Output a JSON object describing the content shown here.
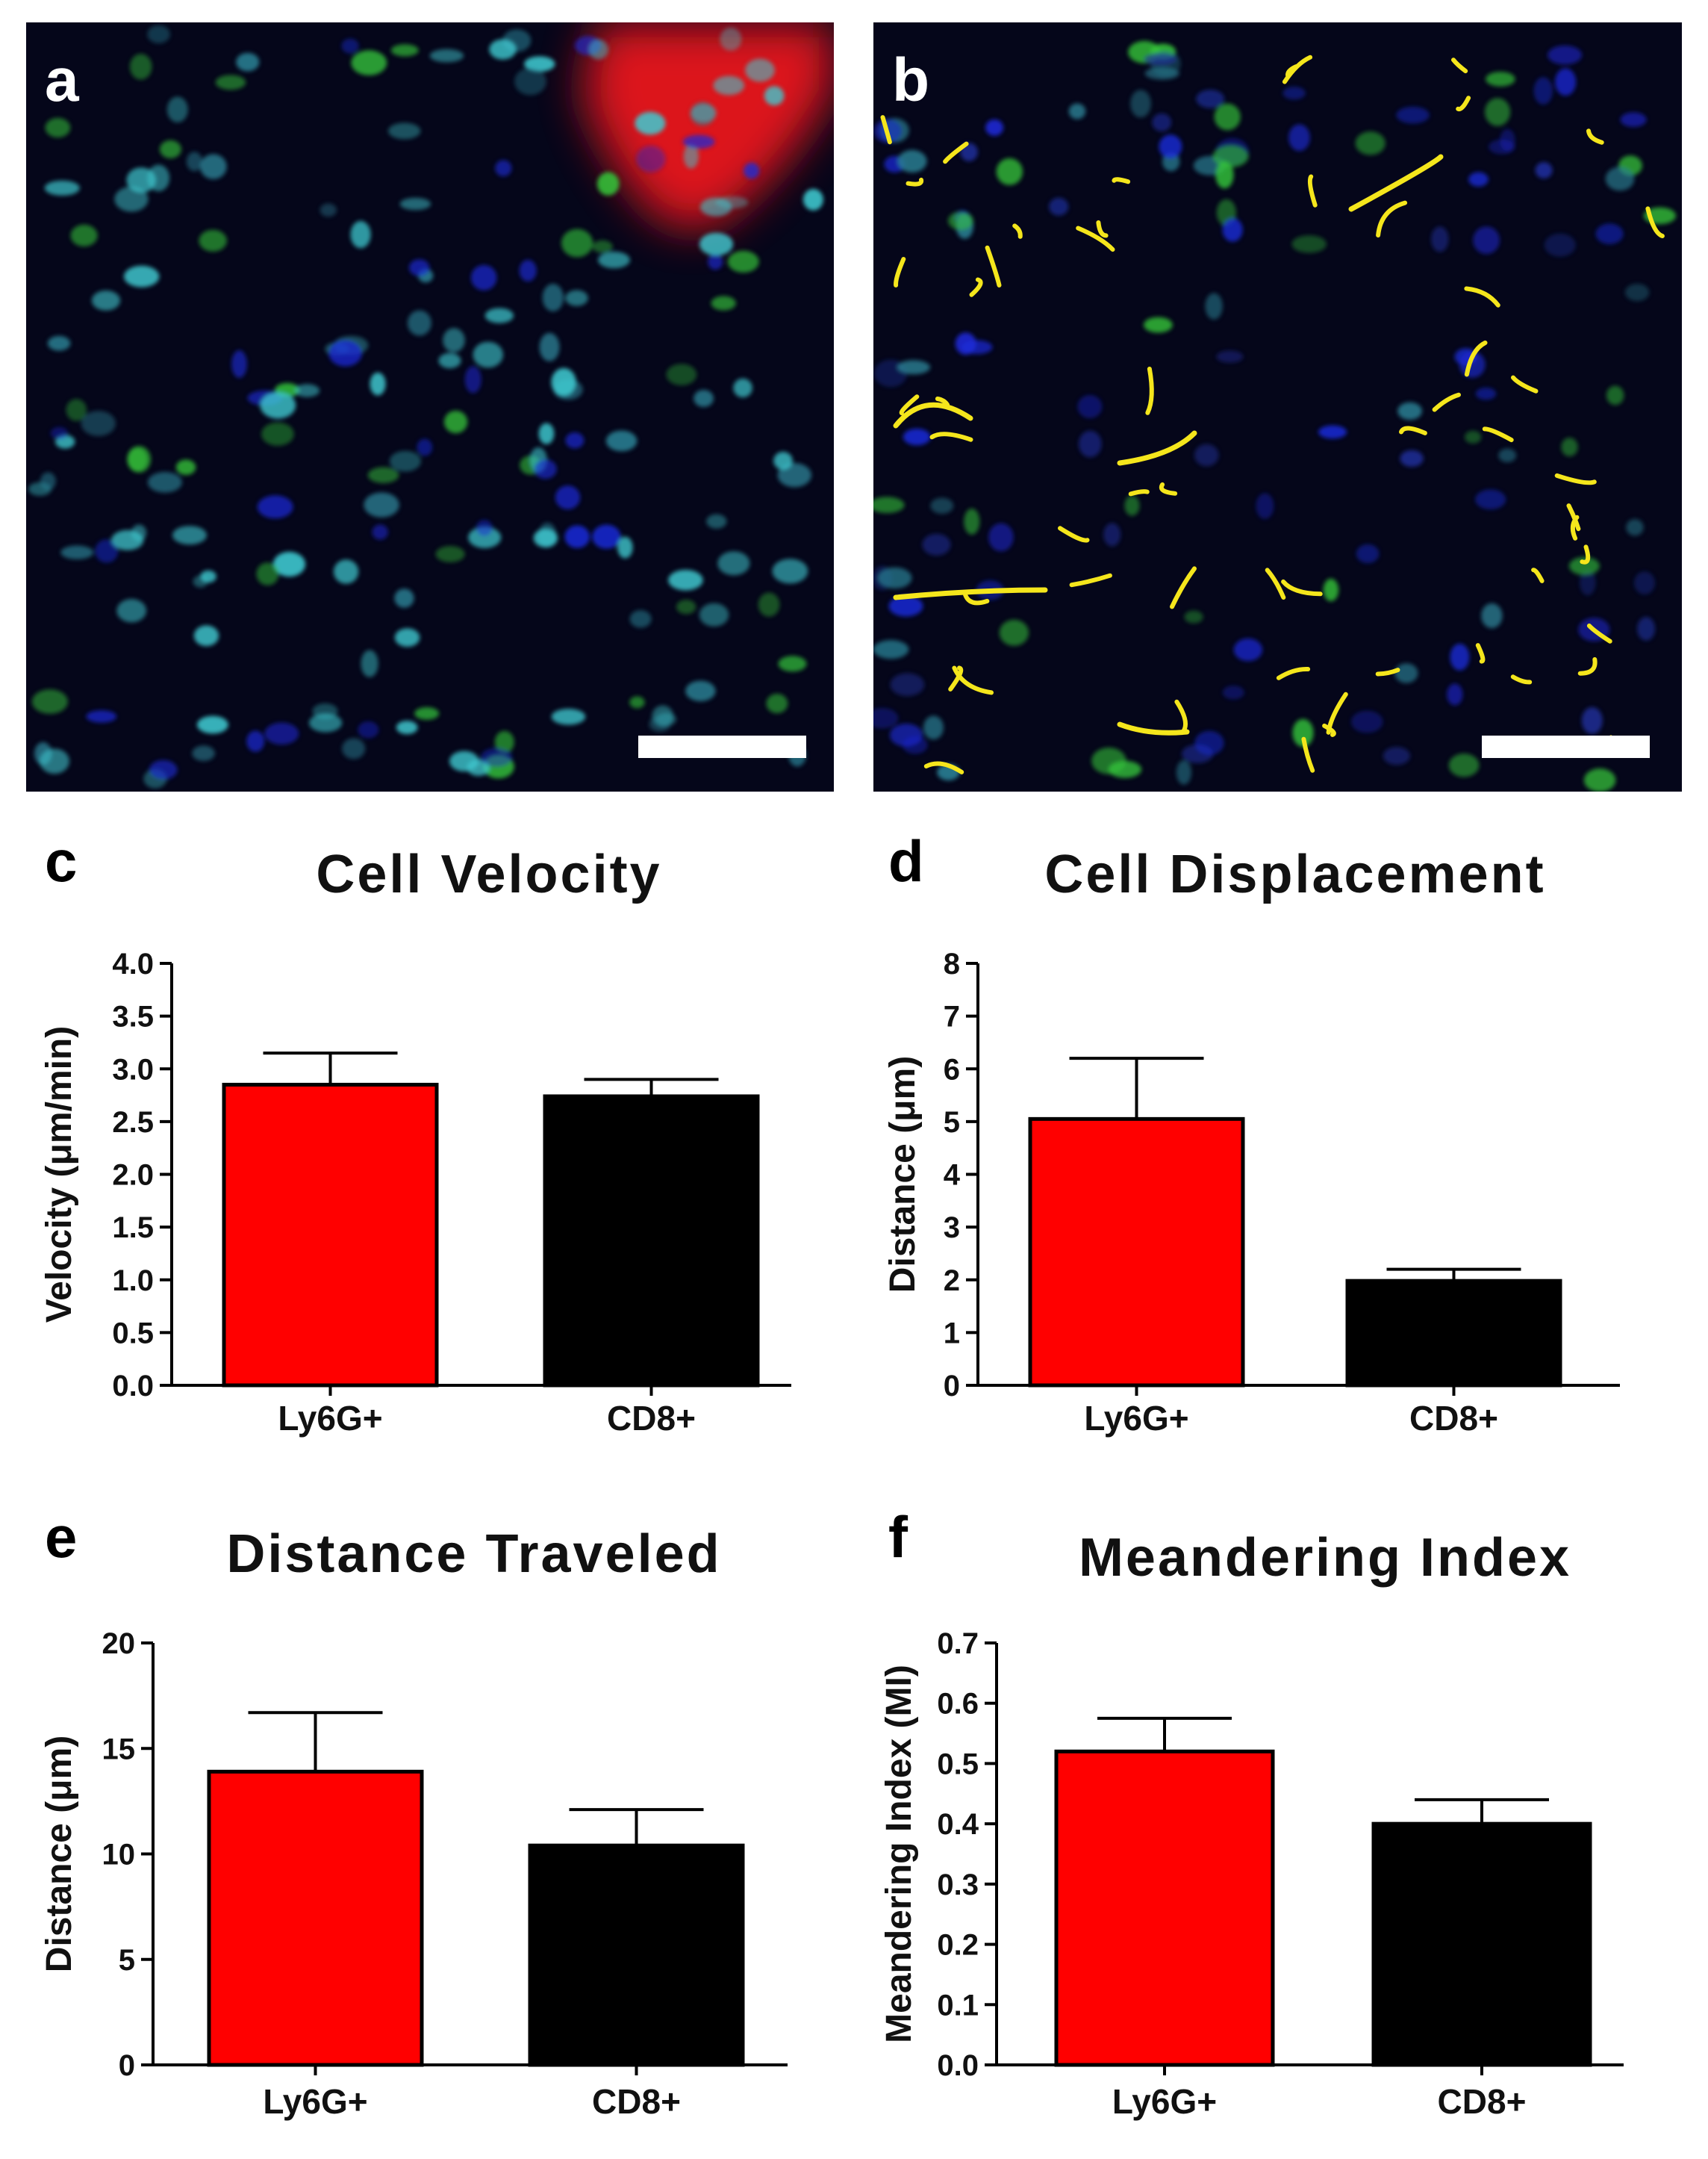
{
  "panels": {
    "a": {
      "letter": "a"
    },
    "b": {
      "letter": "b"
    }
  },
  "colors": {
    "ly6g": "#ff0000",
    "cd8": "#000000",
    "micrograph_bg": "#05061a",
    "nuclei_cyan": "#3fc8cf",
    "nuclei_blue": "#1b2ad8",
    "cells_green": "#34c43a",
    "tracks_yellow": "#f5e61c",
    "vessel_red": "#e8121a"
  },
  "chart_data": [
    {
      "panel": "c",
      "type": "bar",
      "title": "Cell Velocity",
      "ylabel": "Velocity (μm/min)",
      "categories": [
        "Ly6G+",
        "CD8+"
      ],
      "values": [
        2.85,
        2.74
      ],
      "errors": [
        0.3,
        0.16
      ],
      "ylim": [
        0,
        4.0
      ],
      "yticks": [
        "0.0",
        "0.5",
        "1.0",
        "1.5",
        "2.0",
        "2.5",
        "3.0",
        "3.5",
        "4.0"
      ]
    },
    {
      "panel": "d",
      "type": "bar",
      "title": "Cell Displacement",
      "ylabel": "Distance (μm)",
      "categories": [
        "Ly6G+",
        "CD8+"
      ],
      "values": [
        5.05,
        1.98
      ],
      "errors": [
        1.15,
        0.22
      ],
      "ylim": [
        0,
        8
      ],
      "yticks": [
        "0",
        "1",
        "2",
        "3",
        "4",
        "5",
        "6",
        "7",
        "8"
      ]
    },
    {
      "panel": "e",
      "type": "bar",
      "title": "Distance Traveled",
      "ylabel": "Distance (μm)",
      "categories": [
        "Ly6G+",
        "CD8+"
      ],
      "values": [
        13.9,
        10.4
      ],
      "errors": [
        2.8,
        1.7
      ],
      "ylim": [
        0,
        20
      ],
      "yticks": [
        "0",
        "5",
        "10",
        "15",
        "20"
      ]
    },
    {
      "panel": "f",
      "type": "bar",
      "title": "Meandering Index",
      "ylabel": "Meandering Index (MI)",
      "categories": [
        "Ly6G+",
        "CD8+"
      ],
      "values": [
        0.52,
        0.4
      ],
      "errors": [
        0.055,
        0.04
      ],
      "ylim": [
        0,
        0.7
      ],
      "yticks": [
        "0.0",
        "0.1",
        "0.2",
        "0.3",
        "0.4",
        "0.5",
        "0.6",
        "0.7"
      ]
    }
  ]
}
